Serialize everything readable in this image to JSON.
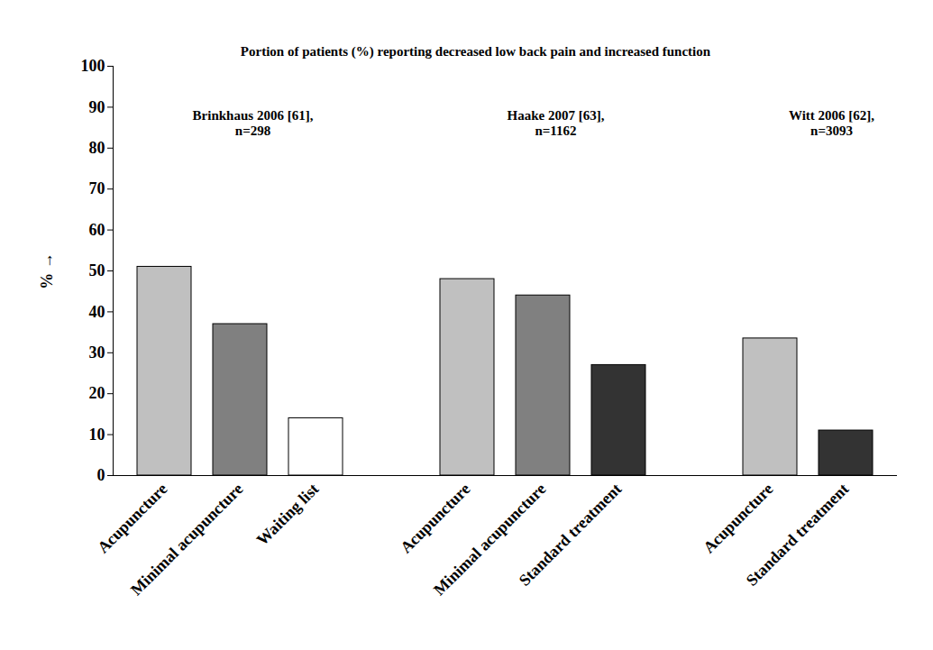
{
  "chart_data": {
    "type": "bar",
    "title": "Portion of patients (%) reporting decreased low back pain and increased function",
    "y_label": "%",
    "ylim": [
      0,
      100
    ],
    "yticks": [
      0,
      10,
      20,
      30,
      40,
      50,
      60,
      70,
      80,
      90,
      100
    ],
    "grid": false,
    "groups": [
      {
        "label": [
          "Brinkhaus 2006 [61],",
          "n=298"
        ],
        "categories": [
          "Acupuncture",
          "Minimal acupuncture",
          "Waiting list"
        ],
        "values": [
          51,
          37,
          14
        ],
        "colors": [
          "#c0c0c0",
          "#808080",
          "#ffffff"
        ]
      },
      {
        "label": [
          "Haake 2007 [63],",
          "n=1162"
        ],
        "categories": [
          "Acupuncture",
          "Minimal acupuncture",
          "Standard treatment"
        ],
        "values": [
          48,
          44,
          27
        ],
        "colors": [
          "#c0c0c0",
          "#808080",
          "#333333"
        ]
      },
      {
        "label": [
          "Witt 2006 [62],",
          "n=3093"
        ],
        "categories": [
          "Acupuncture",
          "Standard treatment"
        ],
        "values": [
          33.5,
          11
        ],
        "colors": [
          "#c0c0c0",
          "#333333"
        ]
      }
    ]
  }
}
